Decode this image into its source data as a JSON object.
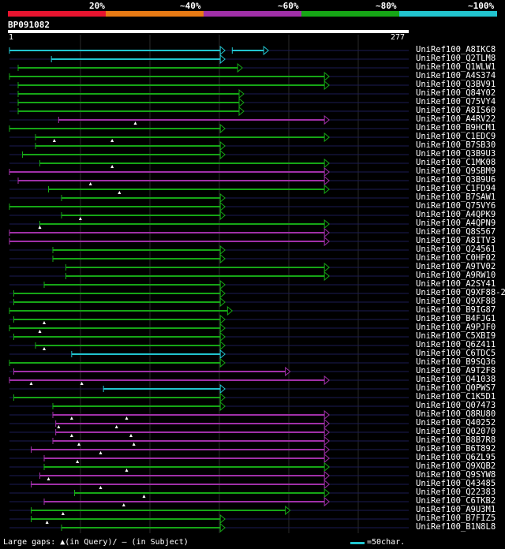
{
  "legend": {
    "labels": [
      "20%",
      "~40%",
      "~60%",
      "~80%",
      "~100%"
    ],
    "colors": [
      "#e8142f",
      "#e87a14",
      "#a030a8",
      "#16a616",
      "#22c4cf"
    ]
  },
  "query": {
    "id": "BP091082",
    "start": "1",
    "end": "277"
  },
  "footer": {
    "gaps_text": "Large gaps: ▲(in Query)/ – (in Subject)",
    "scale_text": "=50char."
  },
  "hits": [
    {
      "id": "UniRef100_A8IKC8",
      "color": "#22c4cf",
      "s": 1,
      "e": 150,
      "s2": 155,
      "e2": 180
    },
    {
      "id": "UniRef100_Q2TLM8",
      "color": "#22c4cf",
      "s": 30,
      "e": 150
    },
    {
      "id": "UniRef100_Q1WLW1",
      "color": "#16a616",
      "s": 7,
      "e": 162
    },
    {
      "id": "UniRef100_A4S374",
      "color": "#16a616",
      "s": 1,
      "e": 222
    },
    {
      "id": "UniRef100_Q3BV91",
      "color": "#16a616",
      "s": 7,
      "e": 222
    },
    {
      "id": "UniRef100_Q84Y02",
      "color": "#16a616",
      "s": 7,
      "e": 163
    },
    {
      "id": "UniRef100_Q75VY4",
      "color": "#16a616",
      "s": 7,
      "e": 163
    },
    {
      "id": "UniRef100_A8IS60",
      "color": "#16a616",
      "s": 7,
      "e": 163
    },
    {
      "id": "UniRef100_A4RV22",
      "color": "#a030a8",
      "s": 35,
      "e": 222,
      "gaps": [
        88
      ]
    },
    {
      "id": "UniRef100_B9HCM1",
      "color": "#16a616",
      "s": 1,
      "e": 150
    },
    {
      "id": "UniRef100_C1EDC9",
      "color": "#16a616",
      "s": 19,
      "e": 222,
      "gaps": [
        32,
        72
      ]
    },
    {
      "id": "UniRef100_B7SB30",
      "color": "#16a616",
      "s": 19,
      "e": 150
    },
    {
      "id": "UniRef100_Q3B9U3",
      "color": "#16a616",
      "s": 10,
      "e": 150
    },
    {
      "id": "UniRef100_C1MK08",
      "color": "#16a616",
      "s": 22,
      "e": 222,
      "gaps": [
        72
      ]
    },
    {
      "id": "UniRef100_Q9SBM9",
      "color": "#a030a8",
      "s": 1,
      "e": 222
    },
    {
      "id": "UniRef100_Q3B9U6",
      "color": "#a030a8",
      "s": 7,
      "e": 222,
      "gaps": [
        57
      ]
    },
    {
      "id": "UniRef100_C1FD94",
      "color": "#16a616",
      "s": 28,
      "e": 222,
      "gaps": [
        77
      ]
    },
    {
      "id": "UniRef100_B7SAW1",
      "color": "#16a616",
      "s": 37,
      "e": 150
    },
    {
      "id": "UniRef100_Q75VY6",
      "color": "#16a616",
      "s": 1,
      "e": 150
    },
    {
      "id": "UniRef100_A4QPK9",
      "color": "#16a616",
      "s": 37,
      "e": 150,
      "gaps": [
        50
      ]
    },
    {
      "id": "UniRef100_A4QPN9",
      "color": "#16a616",
      "s": 22,
      "e": 222,
      "gaps": [
        22
      ]
    },
    {
      "id": "UniRef100_Q8S567",
      "color": "#a030a8",
      "s": 1,
      "e": 222
    },
    {
      "id": "UniRef100_A8ITV3",
      "color": "#a030a8",
      "s": 1,
      "e": 222
    },
    {
      "id": "UniRef100_Q24561",
      "color": "#16a616",
      "s": 31,
      "e": 150
    },
    {
      "id": "UniRef100_C0HF02",
      "color": "#16a616",
      "s": 31,
      "e": 150
    },
    {
      "id": "UniRef100_A9TV02",
      "color": "#16a616",
      "s": 40,
      "e": 222
    },
    {
      "id": "UniRef100_A9RW10",
      "color": "#16a616",
      "s": 40,
      "e": 222
    },
    {
      "id": "UniRef100_A2SY41",
      "color": "#16a616",
      "s": 25,
      "e": 150
    },
    {
      "id": "UniRef100_Q9XF88-2",
      "color": "#16a616",
      "s": 4,
      "e": 150
    },
    {
      "id": "UniRef100_Q9XF88",
      "color": "#16a616",
      "s": 4,
      "e": 150
    },
    {
      "id": "UniRef100_B9IG87",
      "color": "#16a616",
      "s": 1,
      "e": 155
    },
    {
      "id": "UniRef100_B4FJG1",
      "color": "#16a616",
      "s": 4,
      "e": 150,
      "gaps": [
        25
      ]
    },
    {
      "id": "UniRef100_A9PJF0",
      "color": "#16a616",
      "s": 1,
      "e": 150,
      "gaps": [
        22
      ]
    },
    {
      "id": "UniRef100_C5XBI9",
      "color": "#16a616",
      "s": 4,
      "e": 150
    },
    {
      "id": "UniRef100_Q6Z411",
      "color": "#16a616",
      "s": 19,
      "e": 150,
      "gaps": [
        25
      ]
    },
    {
      "id": "UniRef100_C6TDC5",
      "color": "#22c4cf",
      "s": 44,
      "e": 150
    },
    {
      "id": "UniRef100_B9SQ36",
      "color": "#16a616",
      "s": 1,
      "e": 150
    },
    {
      "id": "UniRef100_A9T2F8",
      "color": "#a030a8",
      "s": 4,
      "e": 195
    },
    {
      "id": "UniRef100_Q41038",
      "color": "#a030a8",
      "s": 1,
      "e": 222,
      "gaps": [
        16,
        51
      ]
    },
    {
      "id": "UniRef100_Q0PWS7",
      "color": "#22c4cf",
      "s": 66,
      "e": 150
    },
    {
      "id": "UniRef100_C1K5D1",
      "color": "#16a616",
      "s": 4,
      "e": 150
    },
    {
      "id": "UniRef100_Q07473",
      "color": "#16a616",
      "s": 31,
      "e": 150
    },
    {
      "id": "UniRef100_Q8RU80",
      "color": "#a030a8",
      "s": 31,
      "e": 222,
      "gaps": [
        44,
        82
      ]
    },
    {
      "id": "UniRef100_Q40252",
      "color": "#a030a8",
      "s": 33,
      "e": 222,
      "gaps": [
        35,
        75
      ]
    },
    {
      "id": "UniRef100_Q02070",
      "color": "#a030a8",
      "s": 33,
      "e": 222,
      "gaps": [
        44,
        85
      ]
    },
    {
      "id": "UniRef100_B8B7R8",
      "color": "#a030a8",
      "s": 31,
      "e": 222,
      "gaps": [
        49,
        87
      ]
    },
    {
      "id": "UniRef100_B6T892",
      "color": "#a030a8",
      "s": 16,
      "e": 222,
      "gaps": [
        64
      ]
    },
    {
      "id": "UniRef100_Q6ZL95",
      "color": "#a030a8",
      "s": 25,
      "e": 222,
      "gaps": [
        48
      ]
    },
    {
      "id": "UniRef100_Q9XQB2",
      "color": "#16a616",
      "s": 25,
      "e": 222,
      "gaps": [
        82
      ]
    },
    {
      "id": "UniRef100_Q9SYW8",
      "color": "#a030a8",
      "s": 22,
      "e": 222,
      "gaps": [
        28
      ]
    },
    {
      "id": "UniRef100_Q43485",
      "color": "#a030a8",
      "s": 16,
      "e": 222,
      "gaps": [
        64
      ]
    },
    {
      "id": "UniRef100_Q22383",
      "color": "#16a616",
      "s": 46,
      "e": 222,
      "gaps": [
        94
      ]
    },
    {
      "id": "UniRef100_C6TKB2",
      "color": "#a030a8",
      "s": 25,
      "e": 222,
      "gaps": [
        80
      ]
    },
    {
      "id": "UniRef100_A9U3M1",
      "color": "#16a616",
      "s": 16,
      "e": 195,
      "gaps": [
        38
      ]
    },
    {
      "id": "UniRef100_B7FIZ5",
      "color": "#16a616",
      "s": 16,
      "e": 150,
      "gaps": [
        27
      ]
    },
    {
      "id": "UniRef100_B1N8L8",
      "color": "#16a616",
      "s": 37,
      "e": 150
    }
  ]
}
